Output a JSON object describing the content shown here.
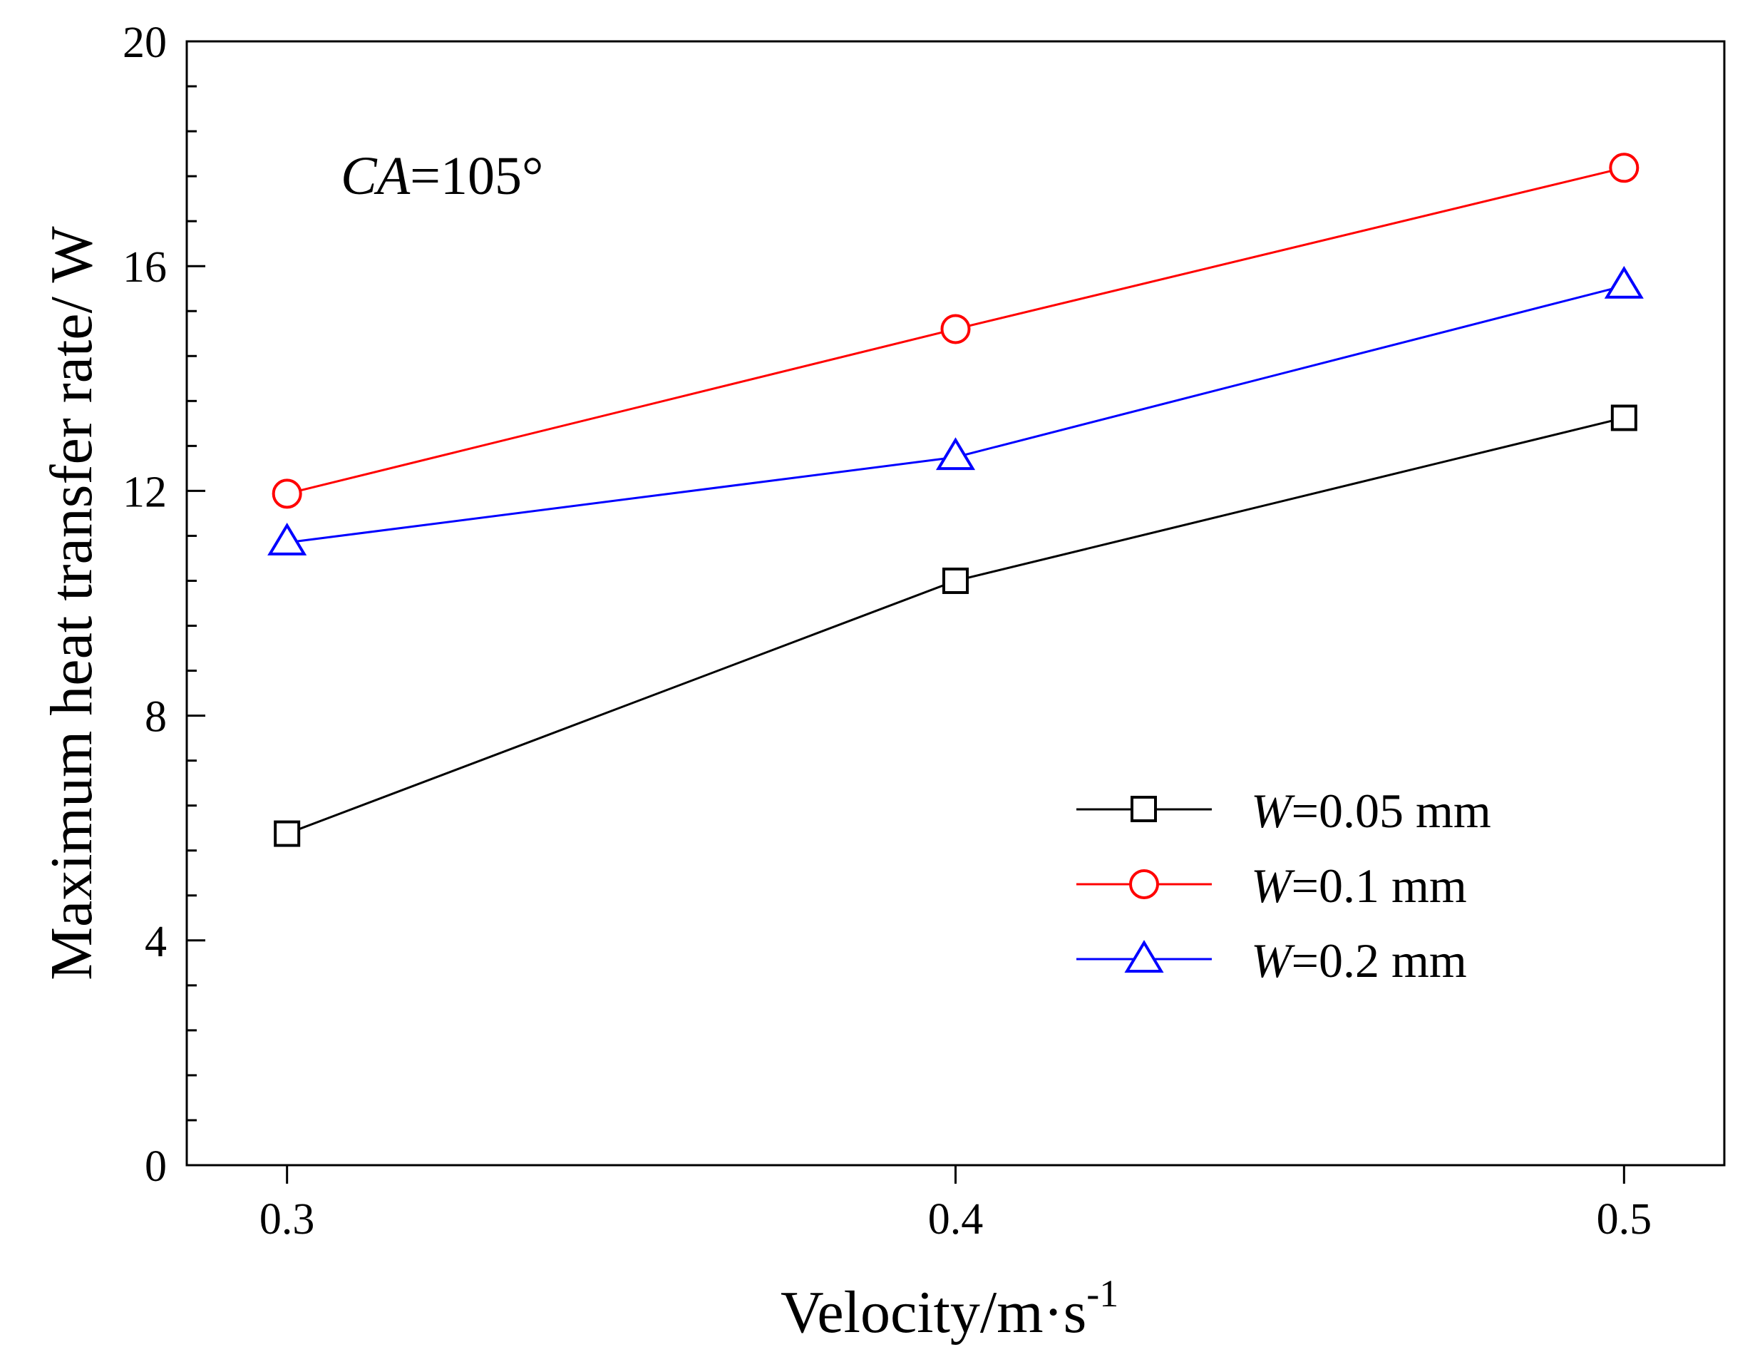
{
  "chart_data": {
    "type": "line",
    "title": "",
    "xlabel": "Velocity/m·s",
    "xlabel_superscript": "-1",
    "ylabel": "Maximum heat transfer rate/ W",
    "xlim": [
      0.285,
      0.515
    ],
    "ylim": [
      0,
      20
    ],
    "x": [
      0.3,
      0.4,
      0.5
    ],
    "x_ticks": [
      "0.3",
      "0.4",
      "0.5"
    ],
    "y_ticks": [
      0,
      4,
      8,
      12,
      16,
      20
    ],
    "y_minor_step": 0.8,
    "grid": false,
    "legend_position": "bottom-right",
    "annotation": {
      "italic": "CA",
      "rest": "=105°"
    },
    "series": [
      {
        "name": "W=0.05 mm",
        "symbol": "W",
        "label_rest": "=0.05 mm",
        "marker": "square",
        "color": "#000000",
        "values": [
          5.9,
          10.4,
          13.3
        ]
      },
      {
        "name": "W=0.1 mm",
        "symbol": "W",
        "label_rest": "=0.1 mm",
        "marker": "circle",
        "color": "#ff0000",
        "values": [
          11.95,
          14.88,
          17.75
        ]
      },
      {
        "name": "W=0.2 mm",
        "symbol": "W",
        "label_rest": "=0.2 mm",
        "marker": "triangle",
        "color": "#0000ff",
        "values": [
          11.08,
          12.6,
          15.65
        ]
      }
    ]
  }
}
